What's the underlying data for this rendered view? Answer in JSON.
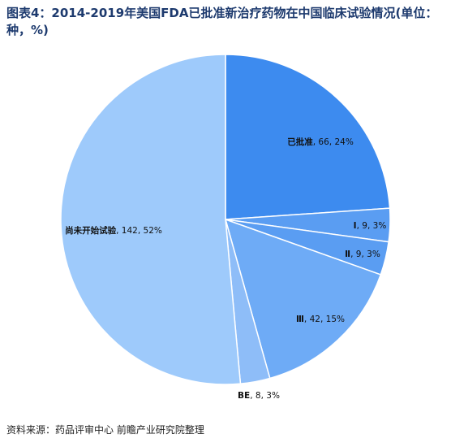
{
  "chart_data": {
    "type": "pie",
    "title": "图表4：2014-2019年美国FDA已批准新治疗药物在中国临床试验情况(单位：种，%)",
    "categories": [
      "已批准",
      "Ⅰ",
      "Ⅱ",
      "Ⅲ",
      "BE",
      "尚未开始试验"
    ],
    "values": [
      66,
      9,
      9,
      42,
      8,
      142
    ],
    "shares": [
      24,
      3,
      3,
      15,
      3,
      52
    ],
    "share_labels": [
      "24%",
      "3%",
      "3%",
      "15%",
      "3%",
      "52%"
    ],
    "colors": [
      "#3d8bef",
      "#5a9df2",
      "#5a9df2",
      "#6eabf6",
      "#8ebdf8",
      "#9ecafb"
    ],
    "source": "资料来源：药品评审中心 前瞻产业研究院整理"
  }
}
